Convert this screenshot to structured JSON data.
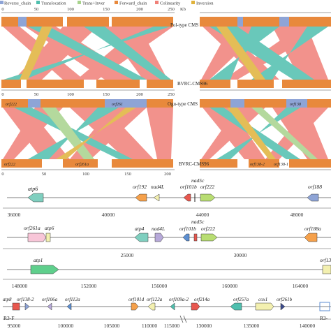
{
  "legend": {
    "items": [
      {
        "label": "Reverse_chain",
        "color": "#8ea4d6"
      },
      {
        "label": "Translocation",
        "color": "#4fbfae"
      },
      {
        "label": "Trans+Inver",
        "color": "#a8d38c"
      },
      {
        "label": "Forward_chain",
        "color": "#e8893c"
      },
      {
        "label": "Colinearity",
        "color": "#f08078"
      },
      {
        "label": "Inversion",
        "color": "#e0b23a"
      }
    ]
  },
  "synteny": {
    "unit": "Kb",
    "top_ticks": [
      "0",
      "50",
      "100",
      "150",
      "200",
      "250"
    ],
    "mid_ticks": [
      "0",
      "50",
      "100",
      "150",
      "200",
      "250"
    ],
    "bottom_ticks": [
      "0",
      "50",
      "100",
      "150",
      "200"
    ],
    "top_label_1": "Pol-type CMS",
    "bottom_label_1": "BVRC-CMS96",
    "top_label_2": "Ogu-type CMS",
    "bottom_label_2": "BVRC-CMS96",
    "ogu_left_genes": [
      "orf222",
      "orf261"
    ],
    "bvrc_left_genes": [
      "orf222",
      "orf261a"
    ],
    "ogu_right_genes": [
      "orf138"
    ],
    "bvrc_right_genes": [
      "orf138-2",
      "orf138-1"
    ]
  },
  "tracks": {
    "track1": {
      "genes": [
        "atp6",
        "orf192",
        "nad4L",
        "orf101b",
        "nad5c",
        "orf222",
        "orf188"
      ],
      "ticks": [
        "36000",
        "40000",
        "44000",
        "48000"
      ]
    },
    "track2": {
      "genes": [
        "orf261a",
        "atp6",
        "atp4",
        "nad4L",
        "orf101b",
        "nad5c",
        "orf222",
        "orf188a"
      ],
      "ticks": [
        "25000",
        "30000"
      ]
    },
    "track3": {
      "genes": [
        "atp1",
        "orf13"
      ],
      "ticks": [
        "148000",
        "152000",
        "156000",
        "160000",
        "164000"
      ]
    },
    "track4": {
      "genes": [
        "atp8",
        "orf138-2",
        "orf106a",
        "orf112a",
        "orf101d",
        "orf122a",
        "orf109a-2",
        "orf214a",
        "orf257a",
        "cox1",
        "orf261b"
      ],
      "region_label": "R3-F",
      "region_label_right": "R3-",
      "ticks": [
        "95000",
        "100000",
        "105000",
        "110000",
        "115000",
        "130000",
        "135000",
        "140000"
      ]
    }
  }
}
